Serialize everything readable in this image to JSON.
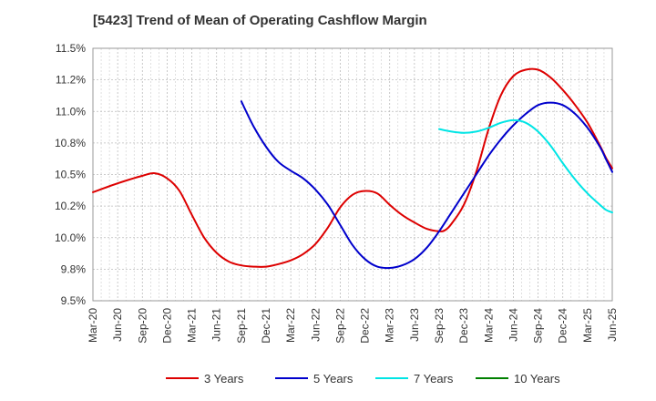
{
  "chart_data": {
    "type": "line",
    "title": "[5423]  Trend of Mean of Operating Cashflow Margin",
    "xlabel": "",
    "ylabel": "",
    "ylim": [
      9.5,
      11.5
    ],
    "yticks": [
      "9.5%",
      "9.8%",
      "10.0%",
      "10.2%",
      "10.5%",
      "10.8%",
      "11.0%",
      "11.2%",
      "11.5%"
    ],
    "ytick_values": [
      9.5,
      9.75,
      10.0,
      10.25,
      10.5,
      10.75,
      11.0,
      11.25,
      11.5
    ],
    "x_categories": [
      "Mar-20",
      "Jun-20",
      "Sep-20",
      "Dec-20",
      "Mar-21",
      "Jun-21",
      "Sep-21",
      "Dec-21",
      "Mar-22",
      "Jun-22",
      "Sep-22",
      "Dec-22",
      "Mar-23",
      "Jun-23",
      "Sep-23",
      "Dec-23",
      "Mar-24",
      "Jun-24",
      "Sep-24",
      "Dec-24",
      "Mar-25",
      "Jun-25"
    ],
    "grid": true,
    "legend_position": "bottom",
    "series": [
      {
        "name": "3 Years",
        "color": "#dd0000",
        "points": [
          [
            0,
            10.36
          ],
          [
            1,
            10.43
          ],
          [
            2,
            10.49
          ],
          [
            2.5,
            10.51
          ],
          [
            3,
            10.47
          ],
          [
            3.5,
            10.37
          ],
          [
            4,
            10.18
          ],
          [
            4.5,
            10.0
          ],
          [
            5,
            9.88
          ],
          [
            5.5,
            9.81
          ],
          [
            6,
            9.78
          ],
          [
            6.5,
            9.77
          ],
          [
            7,
            9.77
          ],
          [
            7.5,
            9.79
          ],
          [
            8,
            9.82
          ],
          [
            8.5,
            9.87
          ],
          [
            9,
            9.95
          ],
          [
            9.5,
            10.08
          ],
          [
            10,
            10.24
          ],
          [
            10.5,
            10.34
          ],
          [
            11,
            10.37
          ],
          [
            11.5,
            10.35
          ],
          [
            12,
            10.26
          ],
          [
            12.5,
            10.18
          ],
          [
            13,
            10.12
          ],
          [
            13.5,
            10.07
          ],
          [
            14,
            10.05
          ],
          [
            14.25,
            10.06
          ],
          [
            14.5,
            10.11
          ],
          [
            15,
            10.26
          ],
          [
            15.5,
            10.52
          ],
          [
            16,
            10.86
          ],
          [
            16.5,
            11.13
          ],
          [
            17,
            11.28
          ],
          [
            17.5,
            11.33
          ],
          [
            18,
            11.33
          ],
          [
            18.5,
            11.27
          ],
          [
            19,
            11.17
          ],
          [
            19.5,
            11.05
          ],
          [
            20,
            10.91
          ],
          [
            20.5,
            10.73
          ],
          [
            20.75,
            10.63
          ],
          [
            21,
            10.55
          ]
        ]
      },
      {
        "name": "5 Years",
        "color": "#0000cc",
        "points": [
          [
            6,
            11.08
          ],
          [
            6.5,
            10.88
          ],
          [
            7,
            10.72
          ],
          [
            7.5,
            10.6
          ],
          [
            8,
            10.53
          ],
          [
            8.5,
            10.47
          ],
          [
            9,
            10.38
          ],
          [
            9.5,
            10.26
          ],
          [
            10,
            10.1
          ],
          [
            10.5,
            9.94
          ],
          [
            11,
            9.83
          ],
          [
            11.5,
            9.77
          ],
          [
            12,
            9.76
          ],
          [
            12.5,
            9.78
          ],
          [
            13,
            9.83
          ],
          [
            13.5,
            9.92
          ],
          [
            14,
            10.05
          ],
          [
            14.5,
            10.2
          ],
          [
            15,
            10.35
          ],
          [
            15.5,
            10.5
          ],
          [
            16,
            10.65
          ],
          [
            16.5,
            10.78
          ],
          [
            17,
            10.89
          ],
          [
            17.5,
            10.98
          ],
          [
            18,
            11.05
          ],
          [
            18.5,
            11.07
          ],
          [
            19,
            11.05
          ],
          [
            19.5,
            10.98
          ],
          [
            20,
            10.87
          ],
          [
            20.5,
            10.72
          ],
          [
            20.75,
            10.62
          ],
          [
            21,
            10.52
          ]
        ]
      },
      {
        "name": "7 Years",
        "color": "#00e5e5",
        "points": [
          [
            14,
            10.86
          ],
          [
            14.5,
            10.84
          ],
          [
            15,
            10.83
          ],
          [
            15.5,
            10.84
          ],
          [
            16,
            10.87
          ],
          [
            16.5,
            10.91
          ],
          [
            17,
            10.93
          ],
          [
            17.5,
            10.91
          ],
          [
            18,
            10.84
          ],
          [
            18.5,
            10.73
          ],
          [
            19,
            10.59
          ],
          [
            19.5,
            10.46
          ],
          [
            20,
            10.35
          ],
          [
            20.5,
            10.26
          ],
          [
            20.75,
            10.22
          ],
          [
            21,
            10.2
          ]
        ]
      },
      {
        "name": "10 Years",
        "color": "#008000",
        "points": []
      }
    ]
  }
}
